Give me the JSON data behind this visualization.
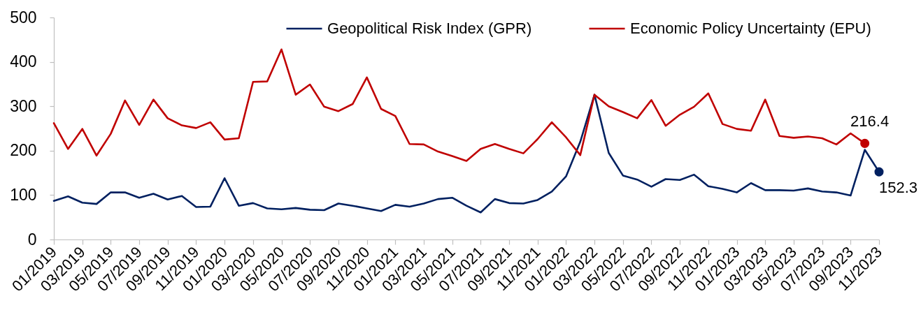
{
  "chart_data": {
    "type": "line",
    "categories": [
      "01/2019",
      null,
      "03/2019",
      null,
      "05/2019",
      null,
      "07/2019",
      null,
      "09/2019",
      null,
      "11/2019",
      null,
      "01/2020",
      null,
      "03/2020",
      null,
      "05/2020",
      null,
      "07/2020",
      null,
      "09/2020",
      null,
      "11/2020",
      null,
      "01/2021",
      null,
      "03/2021",
      null,
      "05/2021",
      null,
      "07/2021",
      null,
      "09/2021",
      null,
      "11/2021",
      null,
      "01/2022",
      null,
      "03/2022",
      null,
      "05/2022",
      null,
      "07/2022",
      null,
      "09/2022",
      null,
      "11/2022",
      null,
      "01/2023",
      null,
      "03/2023",
      null,
      "05/2023",
      null,
      "07/2023",
      null,
      "09/2023",
      null,
      "11/2023"
    ],
    "series": [
      {
        "name": "Geopolitical Risk Index (GPR)",
        "color": "#002060",
        "values": [
          87,
          97,
          83,
          80,
          106,
          106,
          94,
          103,
          90,
          98,
          73,
          74,
          138,
          76,
          82,
          70,
          68,
          71,
          67,
          66,
          81,
          76,
          70,
          64,
          78,
          74,
          81,
          91,
          94,
          76,
          61,
          91,
          82,
          81,
          89,
          108,
          142,
          220,
          326,
          195,
          144,
          135,
          119,
          136,
          134,
          146,
          120,
          114,
          106,
          127,
          111,
          111,
          110,
          115,
          108,
          106,
          99,
          202,
          152.3
        ],
        "value_labels": [
          null,
          null,
          null,
          null,
          null,
          null,
          null,
          null,
          null,
          null,
          null,
          null,
          null,
          null,
          null,
          null,
          null,
          null,
          null,
          null,
          null,
          null,
          null,
          null,
          null,
          null,
          null,
          null,
          null,
          null,
          null,
          null,
          null,
          null,
          null,
          null,
          null,
          null,
          null,
          null,
          null,
          null,
          null,
          null,
          null,
          null,
          null,
          null,
          null,
          null,
          null,
          null,
          null,
          null,
          null,
          null,
          null,
          null,
          "152.3"
        ]
      },
      {
        "name": "Economic Policy Uncertainty (EPU)",
        "color": "#c00000",
        "values": [
          262,
          204,
          249,
          189,
          238,
          313,
          258,
          315,
          273,
          257,
          251,
          264,
          225,
          228,
          355,
          356,
          428,
          326,
          349,
          299,
          289,
          305,
          365,
          294,
          278,
          215,
          214,
          198,
          188,
          177,
          204,
          215,
          204,
          194,
          226,
          264,
          230,
          190,
          326,
          300,
          287,
          273,
          314,
          256,
          281,
          299,
          329,
          260,
          249,
          245,
          315,
          233,
          229,
          232,
          228,
          214,
          239,
          216.4,
          null
        ],
        "value_labels": [
          null,
          null,
          null,
          null,
          null,
          null,
          null,
          null,
          null,
          null,
          null,
          null,
          null,
          null,
          null,
          null,
          null,
          null,
          null,
          null,
          null,
          null,
          null,
          null,
          null,
          null,
          null,
          null,
          null,
          null,
          null,
          null,
          null,
          null,
          null,
          null,
          null,
          null,
          null,
          null,
          null,
          null,
          null,
          null,
          null,
          null,
          null,
          null,
          null,
          null,
          null,
          null,
          null,
          null,
          null,
          null,
          null,
          "216.4",
          null
        ]
      }
    ],
    "ylim": [
      0,
      500
    ],
    "yticks": [
      0,
      100,
      200,
      300,
      400,
      500
    ],
    "grid": false,
    "legend": "top right"
  }
}
